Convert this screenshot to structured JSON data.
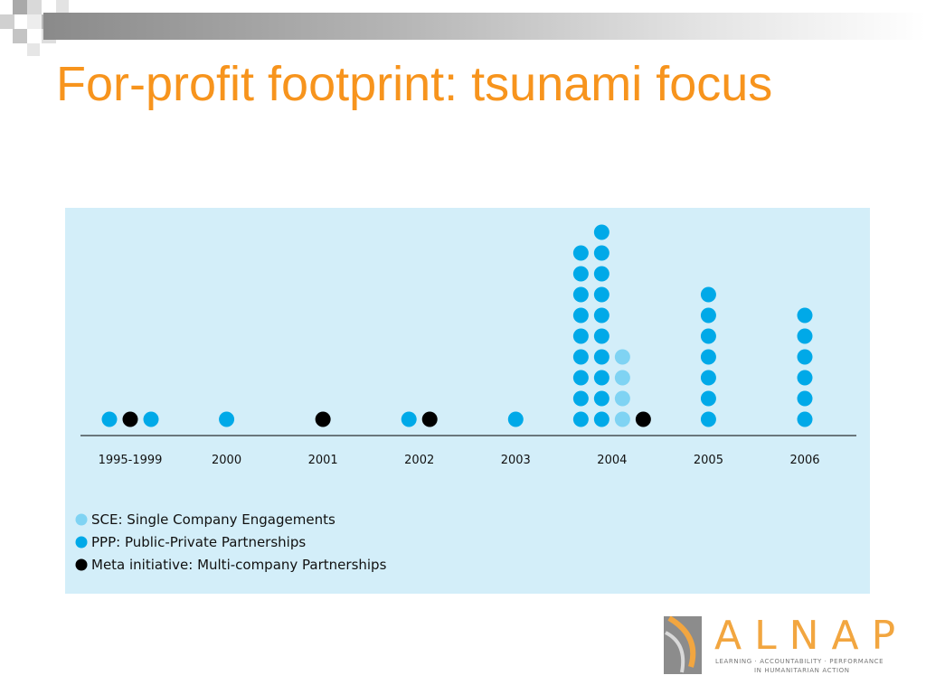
{
  "slide": {
    "title": "For-profit footprint: tsunami focus"
  },
  "chart_data": {
    "type": "scatter",
    "subtype": "dot-stack",
    "title": "",
    "xlabel": "",
    "ylabel": "",
    "grid": false,
    "legend_placement": "bottom-left",
    "categories": [
      "1995-1999",
      "2000",
      "2001",
      "2002",
      "2003",
      "2004",
      "2005",
      "2006"
    ],
    "series": [
      {
        "name": "SCE: Single Company Engagements",
        "color": "#7fd3f3",
        "values": [
          0,
          0,
          0,
          0,
          0,
          4,
          0,
          0
        ]
      },
      {
        "name": "PPP: Public-Private Partnerships",
        "color": "#00a9e8",
        "values": [
          2,
          1,
          0,
          1,
          1,
          19,
          7,
          6
        ]
      },
      {
        "name": "Meta initiative: Multi-company Partnerships",
        "color": "#000000",
        "values": [
          1,
          0,
          1,
          1,
          0,
          1,
          0,
          0
        ]
      }
    ],
    "columns": [
      {
        "x": "1995-1999",
        "stacks": [
          {
            "type": "PPP",
            "count": 1
          },
          {
            "type": "Meta",
            "count": 1
          },
          {
            "type": "PPP",
            "count": 1
          }
        ]
      },
      {
        "x": "2000",
        "stacks": [
          {
            "type": "PPP",
            "count": 1
          }
        ]
      },
      {
        "x": "2001",
        "stacks": [
          {
            "type": "Meta",
            "count": 1
          }
        ]
      },
      {
        "x": "2002",
        "stacks": [
          {
            "type": "PPP",
            "count": 1
          },
          {
            "type": "Meta",
            "count": 1
          }
        ]
      },
      {
        "x": "2003",
        "stacks": [
          {
            "type": "PPP",
            "count": 1
          }
        ]
      },
      {
        "x": "2004",
        "stacks": [
          {
            "type": "PPP",
            "count": 9
          },
          {
            "type": "PPP",
            "count": 10
          },
          {
            "type": "SCE",
            "count": 4
          },
          {
            "type": "Meta",
            "count": 1
          }
        ]
      },
      {
        "x": "2005",
        "stacks": [
          {
            "type": "PPP",
            "count": 7
          }
        ]
      },
      {
        "x": "2006",
        "stacks": [
          {
            "type": "PPP",
            "count": 6
          }
        ]
      }
    ],
    "background": "#d3eef9"
  },
  "logo": {
    "name": "ALNAP",
    "tagline1": "LEARNING · ACCOUNTABILITY · PERFORMANCE",
    "tagline2": "IN HUMANITARIAN ACTION"
  },
  "colors": {
    "title": "#f7941d",
    "logo_orange": "#f2a640",
    "logo_grey": "#8c8c8c"
  }
}
